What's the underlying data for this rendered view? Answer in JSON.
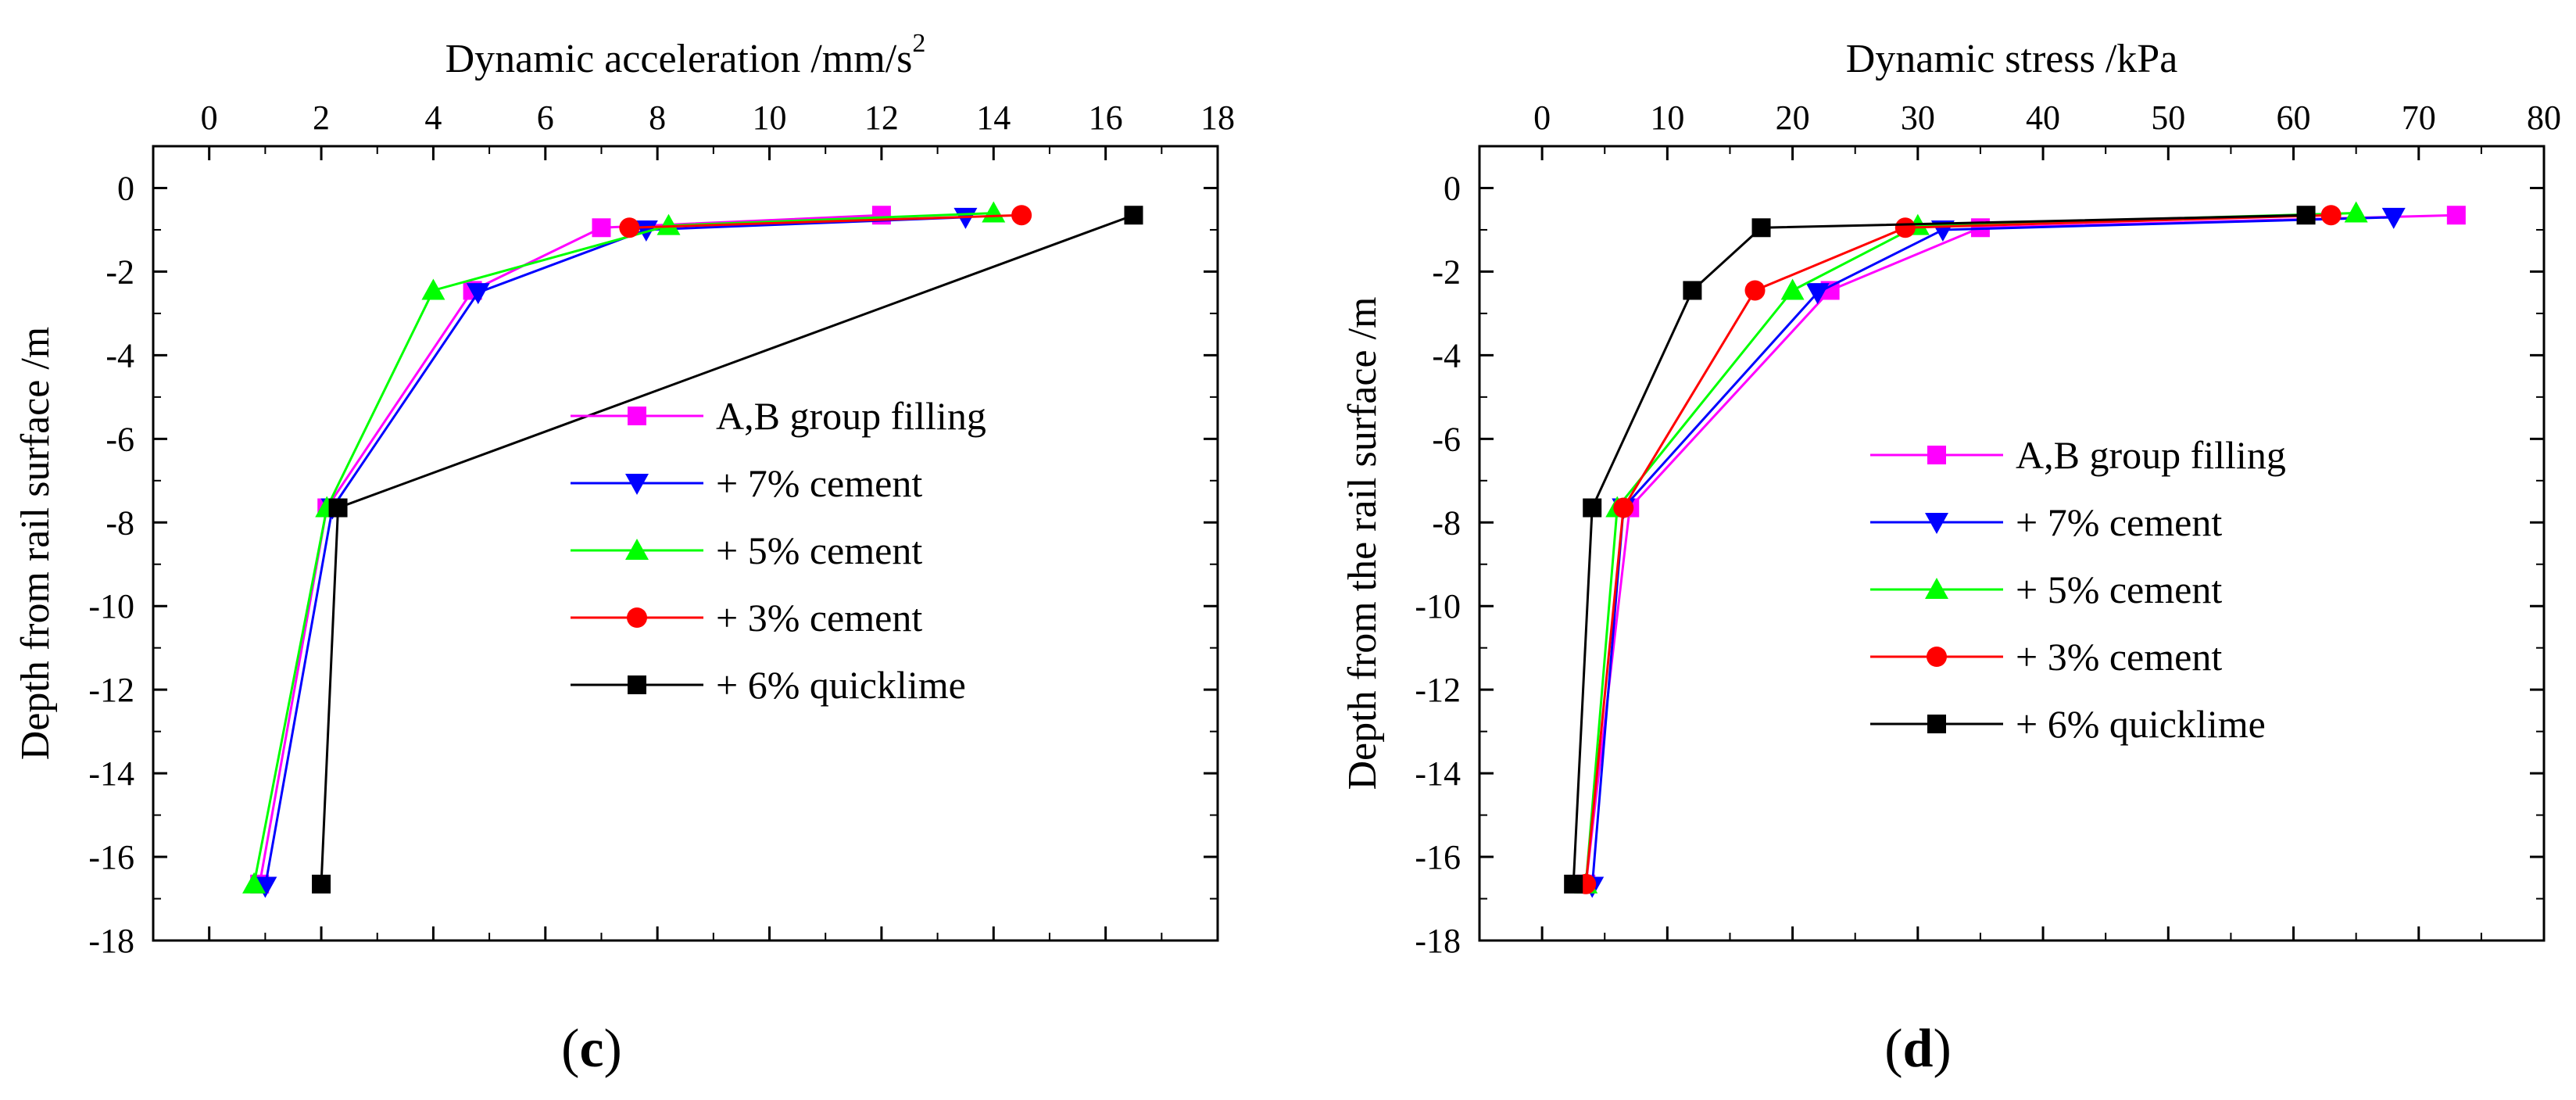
{
  "chart_data": [
    {
      "type": "line",
      "panel_label": {
        "open": "(",
        "letter": "c",
        "close": ")"
      },
      "title": "",
      "xlabel": "Dynamic acceleration /mm/s",
      "xlabel_superscript": "2",
      "ylabel": "Depth from rail surface /m",
      "xlim": [
        -1,
        18
      ],
      "ylim": [
        -18,
        1
      ],
      "x_ticks": [
        0,
        2,
        4,
        6,
        8,
        10,
        12,
        14,
        16,
        18
      ],
      "y_ticks": [
        0,
        -2,
        -4,
        -6,
        -8,
        -10,
        -12,
        -14,
        -16,
        -18
      ],
      "x_axis_position": "top",
      "legend_position": "center-right",
      "series": [
        {
          "name": "A,B group filling",
          "color": "#ff00ff",
          "marker": "square",
          "x": [
            12.0,
            7.0,
            4.7,
            2.1,
            0.9
          ],
          "y": [
            -0.65,
            -0.95,
            -2.45,
            -7.65,
            -16.65
          ]
        },
        {
          "name": "+ 7% cement",
          "color": "#0000ff",
          "marker": "triangle-down",
          "x": [
            13.5,
            7.8,
            4.8,
            2.2,
            1.0
          ],
          "y": [
            -0.7,
            -1.0,
            -2.5,
            -7.65,
            -16.7
          ]
        },
        {
          "name": "+ 5% cement",
          "color": "#00ff00",
          "marker": "triangle-up",
          "x": [
            14.0,
            8.2,
            4.0,
            2.1,
            0.8
          ],
          "y": [
            -0.6,
            -0.9,
            -2.45,
            -7.65,
            -16.65
          ]
        },
        {
          "name": "+ 3% cement",
          "color": "#ff0000",
          "marker": "circle",
          "x": [
            14.5,
            7.5
          ],
          "y": [
            -0.65,
            -0.95
          ]
        },
        {
          "name": "+ 6% quicklime",
          "color": "#000000",
          "marker": "square",
          "x": [
            16.5,
            2.3,
            2.0
          ],
          "y": [
            -0.65,
            -7.65,
            -16.65
          ]
        }
      ]
    },
    {
      "type": "line",
      "panel_label": {
        "open": "(",
        "letter": "d",
        "close": ")"
      },
      "title": "",
      "xlabel": "Dynamic stress /kPa",
      "ylabel": "Depth from the rail surface /m",
      "xlim": [
        -5,
        80
      ],
      "ylim": [
        -18,
        1
      ],
      "x_ticks": [
        0,
        10,
        20,
        30,
        40,
        50,
        60,
        70,
        80
      ],
      "y_ticks": [
        0,
        -2,
        -4,
        -6,
        -8,
        -10,
        -12,
        -14,
        -16,
        -18
      ],
      "x_axis_position": "top",
      "legend_position": "center-right",
      "series": [
        {
          "name": "A,B group filling",
          "color": "#ff00ff",
          "marker": "square",
          "x": [
            73.0,
            35.0,
            23.0,
            7.0,
            3.5
          ],
          "y": [
            -0.65,
            -0.95,
            -2.45,
            -7.65,
            -16.65
          ]
        },
        {
          "name": "+ 7% cement",
          "color": "#0000ff",
          "marker": "triangle-down",
          "x": [
            68.0,
            32.0,
            22.0,
            6.5,
            4.0
          ],
          "y": [
            -0.7,
            -1.0,
            -2.5,
            -7.65,
            -16.7
          ]
        },
        {
          "name": "+ 5% cement",
          "color": "#00ff00",
          "marker": "triangle-up",
          "x": [
            65.0,
            30.0,
            20.0,
            6.0,
            3.5
          ],
          "y": [
            -0.6,
            -0.9,
            -2.45,
            -7.65,
            -16.65
          ]
        },
        {
          "name": "+ 3% cement",
          "color": "#ff0000",
          "marker": "circle",
          "x": [
            63.0,
            29.0,
            17.0,
            6.5,
            3.5
          ],
          "y": [
            -0.65,
            -0.95,
            -2.45,
            -7.65,
            -16.65
          ]
        },
        {
          "name": "+ 6% quicklime",
          "color": "#000000",
          "marker": "square",
          "x": [
            61.0,
            17.5,
            12.0,
            4.0,
            2.5
          ],
          "y": [
            -0.65,
            -0.95,
            -2.45,
            -7.65,
            -16.65
          ]
        }
      ]
    }
  ]
}
